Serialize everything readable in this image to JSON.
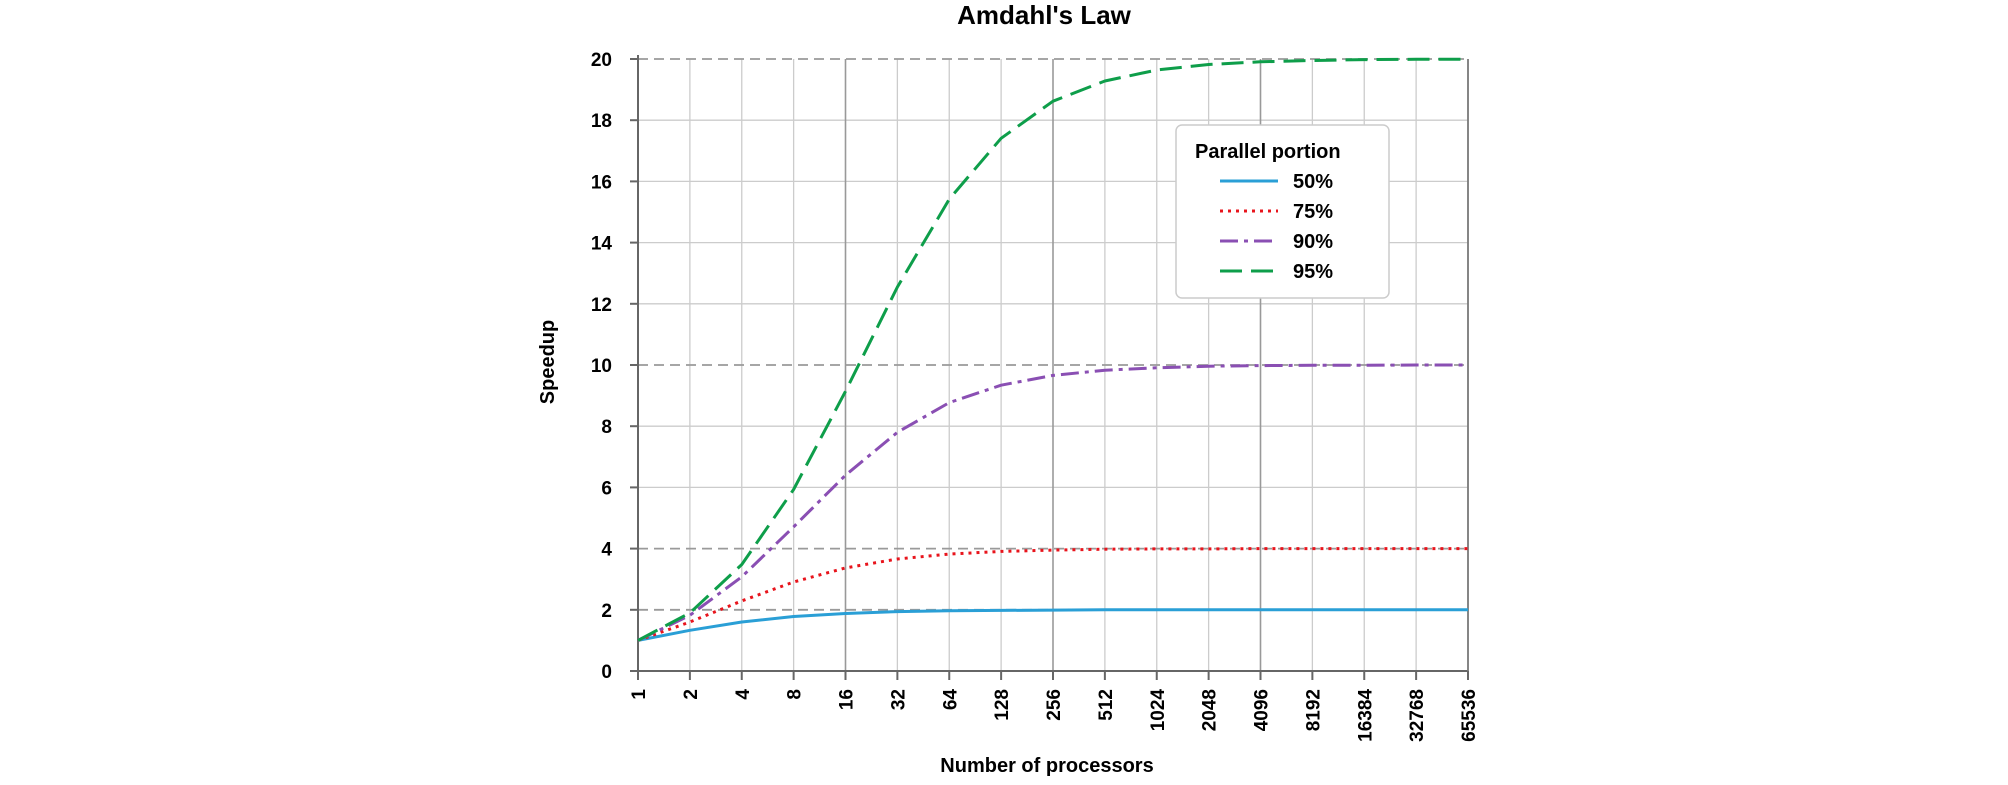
{
  "chart_data": {
    "type": "line",
    "title": "Amdahl's Law",
    "xlabel": "Number of processors",
    "ylabel": "Speedup",
    "x": [
      1,
      2,
      4,
      8,
      16,
      32,
      64,
      128,
      256,
      512,
      1024,
      2048,
      4096,
      8192,
      16384,
      32768,
      65536
    ],
    "x_tick_labels": [
      "1",
      "2",
      "4",
      "8",
      "16",
      "32",
      "64",
      "128",
      "256",
      "512",
      "1024",
      "2048",
      "4096",
      "8192",
      "16384",
      "32768",
      "65536"
    ],
    "x_scale": "log2",
    "ylim": [
      0,
      20
    ],
    "y_ticks": [
      0,
      2,
      4,
      6,
      8,
      10,
      12,
      14,
      16,
      18,
      20
    ],
    "y_tick_labels": [
      "0",
      "2",
      "4",
      "6",
      "8",
      "10",
      "12",
      "14",
      "16",
      "18",
      "20"
    ],
    "grid": true,
    "legend": {
      "title": "Parallel portion",
      "position": "top-right"
    },
    "series": [
      {
        "name": "50%",
        "color": "#2a9fd6",
        "style": "solid",
        "values": [
          1.0,
          1.33,
          1.6,
          1.78,
          1.88,
          1.94,
          1.97,
          1.98,
          1.99,
          2.0,
          2.0,
          2.0,
          2.0,
          2.0,
          2.0,
          2.0,
          2.0
        ]
      },
      {
        "name": "75%",
        "color": "#e8141c",
        "style": "dotted",
        "values": [
          1.0,
          1.6,
          2.29,
          2.91,
          3.37,
          3.66,
          3.82,
          3.91,
          3.95,
          3.98,
          3.99,
          3.99,
          4.0,
          4.0,
          4.0,
          4.0,
          4.0
        ]
      },
      {
        "name": "90%",
        "color": "#8a4fb3",
        "style": "dashdot",
        "values": [
          1.0,
          1.82,
          3.08,
          4.71,
          6.4,
          7.8,
          8.77,
          9.34,
          9.66,
          9.83,
          9.91,
          9.96,
          9.98,
          9.99,
          9.99,
          10.0,
          10.0
        ]
      },
      {
        "name": "95%",
        "color": "#0e9e4a",
        "style": "dashed",
        "values": [
          1.0,
          1.9,
          3.48,
          5.93,
          9.14,
          12.55,
          15.42,
          17.41,
          18.62,
          19.28,
          19.64,
          19.82,
          19.91,
          19.95,
          19.98,
          19.99,
          19.99
        ]
      }
    ]
  }
}
